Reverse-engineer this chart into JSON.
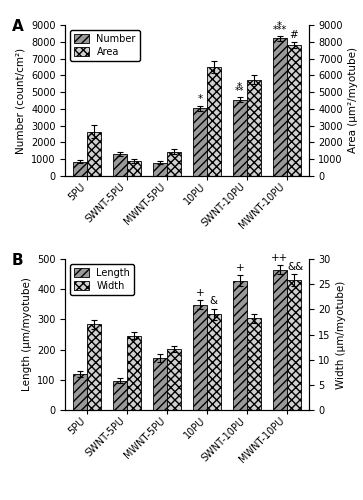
{
  "categories": [
    "5PU",
    "SWNT-5PU",
    "MWNT-5PU",
    "10PU",
    "SWNT-10PU",
    "MWNT-10PU"
  ],
  "panel_A": {
    "number_vals": [
      850,
      1300,
      800,
      4050,
      4550,
      8200
    ],
    "number_errs": [
      100,
      100,
      80,
      150,
      150,
      150
    ],
    "area_vals": [
      2650,
      900,
      1450,
      6500,
      5750,
      7800
    ],
    "area_errs": [
      400,
      100,
      150,
      350,
      250,
      200
    ],
    "ylim": [
      0,
      9000
    ],
    "yticks": [
      0,
      1000,
      2000,
      3000,
      4000,
      5000,
      6000,
      7000,
      8000,
      9000
    ],
    "ylabel_left": "Number (count/cm²)",
    "ylabel_right": "Area (μm²/myotube)",
    "label": "A"
  },
  "panel_B": {
    "length_vals": [
      120,
      97,
      172,
      348,
      428,
      465
    ],
    "length_errs": [
      10,
      8,
      12,
      15,
      18,
      15
    ],
    "width_vals": [
      17,
      14.8,
      12.2,
      19,
      18.2,
      25.8
    ],
    "width_errs": [
      0.9,
      0.7,
      0.6,
      1.1,
      0.9,
      1.2
    ],
    "ylim_left": [
      0,
      500
    ],
    "ylim_right": [
      0,
      30
    ],
    "yticks_left": [
      0,
      100,
      200,
      300,
      400,
      500
    ],
    "yticks_right": [
      0,
      5,
      10,
      15,
      20,
      25,
      30
    ],
    "ylabel_left": "Length (μm/myotube)",
    "ylabel_right": "Width (μm/myotube)",
    "label": "B"
  },
  "bar_width": 0.35,
  "background_color": "#ffffff",
  "color_solid": "#999999",
  "color_checker": "#d0d0d0",
  "tick_fontsize": 7,
  "label_fontsize": 7.5,
  "legend_fontsize": 7,
  "annotation_fontsize": 7.5,
  "panel_label_fontsize": 11
}
